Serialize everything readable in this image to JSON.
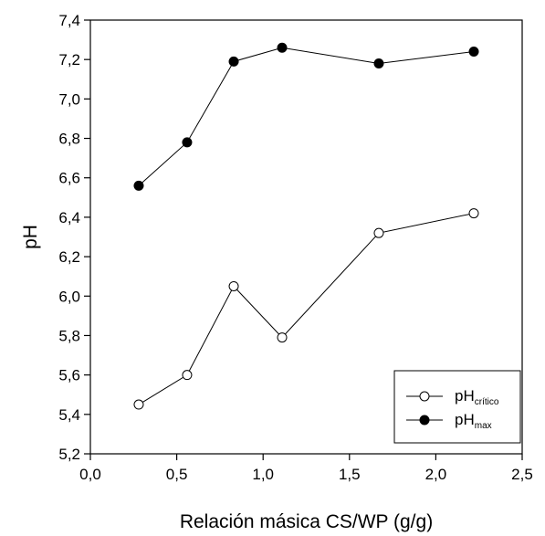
{
  "chart_data": {
    "type": "line",
    "title": "",
    "xlabel": "Relación másica CS/WP (g/g)",
    "ylabel": "pH",
    "xlim": [
      0.0,
      2.5
    ],
    "ylim": [
      5.2,
      7.4
    ],
    "xticks": [
      "0,0",
      "0,5",
      "1,0",
      "1,5",
      "2,0",
      "2,5"
    ],
    "yticks": [
      "5,2",
      "5,4",
      "5,6",
      "5,8",
      "6,0",
      "6,2",
      "6,4",
      "6,6",
      "6,8",
      "7,0",
      "7,2",
      "7,4"
    ],
    "grid": false,
    "legend_position": "bottom-right",
    "series": [
      {
        "name": "pH",
        "name_subscript": "crítico",
        "marker": "open-circle",
        "color": "#000000",
        "x": [
          0.28,
          0.56,
          0.83,
          1.11,
          1.67,
          2.22
        ],
        "y": [
          5.45,
          5.6,
          6.05,
          5.79,
          6.32,
          6.42
        ]
      },
      {
        "name": "pH",
        "name_subscript": "max",
        "marker": "filled-circle",
        "color": "#000000",
        "x": [
          0.28,
          0.56,
          0.83,
          1.11,
          1.67,
          2.22
        ],
        "y": [
          6.56,
          6.78,
          7.19,
          7.26,
          7.18,
          7.24
        ]
      }
    ]
  }
}
